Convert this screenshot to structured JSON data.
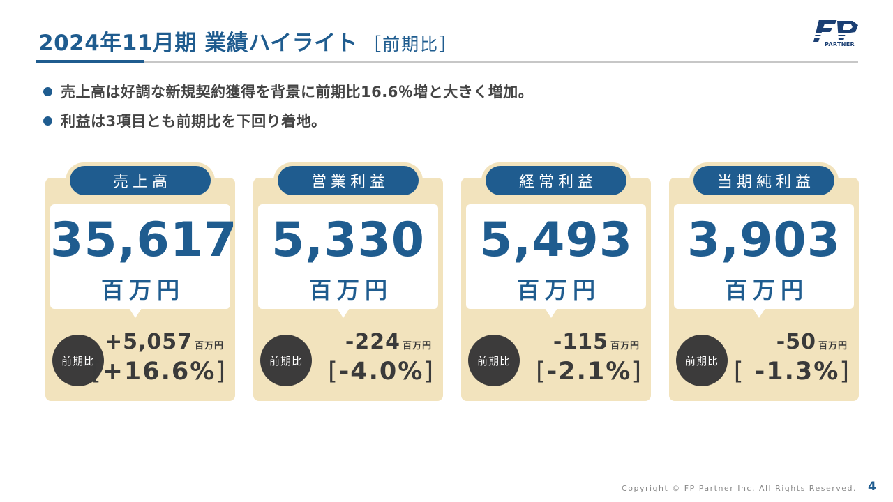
{
  "header": {
    "title": "2024年11月期 業績ハイライト",
    "subtitle": "［前期比］",
    "logo_text": "PARTNER"
  },
  "bullets": [
    "売上高は好調な新規契約獲得を背景に前期比16.6％増と大きく増加。",
    "利益は3項目とも前期比を下回り着地。"
  ],
  "cards": [
    {
      "label": "売上高",
      "value": "35,617",
      "unit": "百万円",
      "yoy_label": "前期比",
      "diff": "+5,057",
      "diff_unit": "百万円",
      "pct": "+16.6%"
    },
    {
      "label": "営業利益",
      "value": "5,330",
      "unit": "百万円",
      "yoy_label": "前期比",
      "diff": "-224",
      "diff_unit": "百万円",
      "pct": "-4.0%"
    },
    {
      "label": "経常利益",
      "value": "5,493",
      "unit": "百万円",
      "yoy_label": "前期比",
      "diff": "-115",
      "diff_unit": "百万円",
      "pct": "-2.1%"
    },
    {
      "label": "当期純利益",
      "value": "3,903",
      "unit": "百万円",
      "yoy_label": "前期比",
      "diff": "-50",
      "diff_unit": "百万円",
      "pct": " -1.3%"
    }
  ],
  "footer": {
    "copyright": "Copyright © FP Partner Inc. All Rights Reserved.",
    "page": "4"
  },
  "colors": {
    "primary": "#1f5c8f",
    "card_bg": "#f2e3bd",
    "circle": "#3c3b3b"
  }
}
